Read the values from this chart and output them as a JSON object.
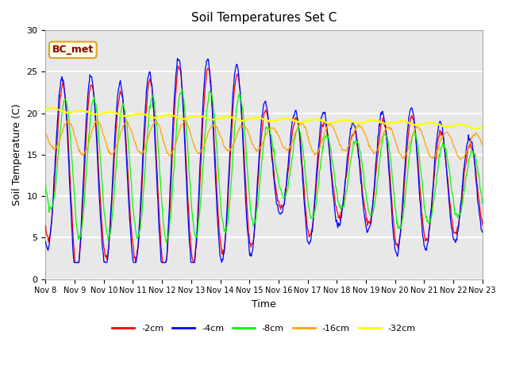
{
  "title": "Soil Temperatures Set C",
  "xlabel": "Time",
  "ylabel": "Soil Temperature (C)",
  "ylim": [
    0,
    30
  ],
  "annotation": "BC_met",
  "background_color": "#e8e8e8",
  "legend_labels": [
    "-2cm",
    "-4cm",
    "-8cm",
    "-16cm",
    "-32cm"
  ],
  "legend_colors": [
    "red",
    "blue",
    "lime",
    "orange",
    "yellow"
  ],
  "xtick_labels": [
    "Nov 8",
    "Nov 9",
    "Nov 10",
    "Nov 11",
    "Nov 12",
    "Nov 13",
    "Nov 14",
    "Nov 15",
    "Nov 16",
    "Nov 17",
    "Nov 18",
    "Nov 19",
    "Nov 20",
    "Nov 21",
    "Nov 22",
    "Nov 23"
  ],
  "xtick_positions": [
    0,
    1,
    2,
    3,
    4,
    5,
    6,
    7,
    8,
    9,
    10,
    11,
    12,
    13,
    14,
    15
  ]
}
